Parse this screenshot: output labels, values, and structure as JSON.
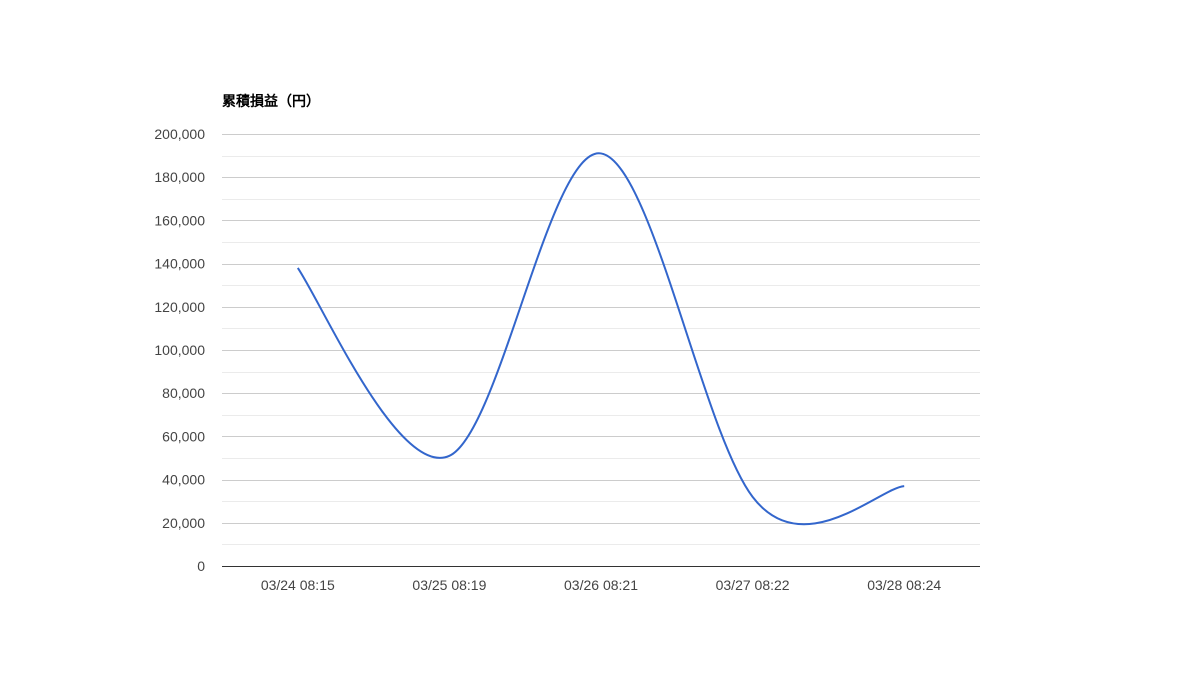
{
  "chart_data": {
    "type": "line",
    "title": "累積損益（円）",
    "xlabel": "",
    "ylabel": "",
    "categories": [
      "03/24 08:15",
      "03/25 08:19",
      "03/26 08:21",
      "03/27 08:22",
      "03/28 08:24"
    ],
    "values": [
      138000,
      51000,
      191000,
      32000,
      37000
    ],
    "ylim": [
      0,
      200000
    ],
    "yticks": [
      "0",
      "20,000",
      "40,000",
      "60,000",
      "80,000",
      "100,000",
      "120,000",
      "140,000",
      "160,000",
      "180,000",
      "200,000"
    ],
    "grid": true,
    "smooth": true,
    "legend": "none",
    "line_color": "#3366cc"
  }
}
